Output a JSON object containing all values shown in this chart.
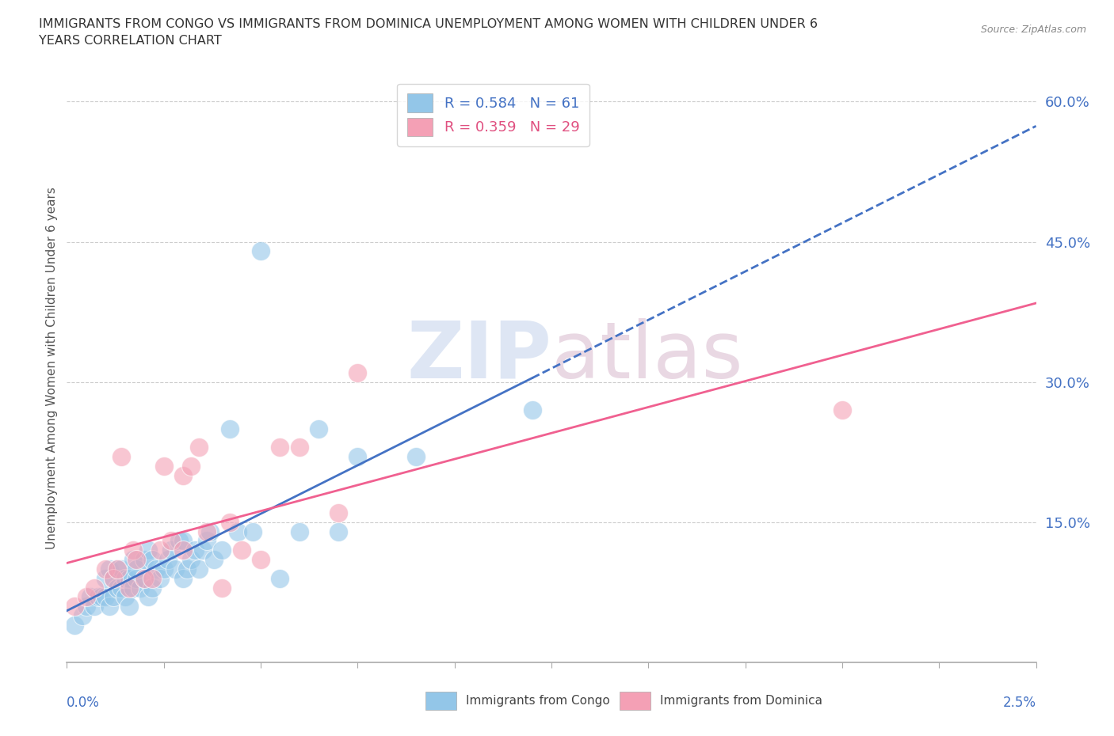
{
  "title_line1": "IMMIGRANTS FROM CONGO VS IMMIGRANTS FROM DOMINICA UNEMPLOYMENT AMONG WOMEN WITH CHILDREN UNDER 6",
  "title_line2": "YEARS CORRELATION CHART",
  "source": "Source: ZipAtlas.com",
  "ylabel": "Unemployment Among Women with Children Under 6 years",
  "yticks": [
    0.0,
    0.15,
    0.3,
    0.45,
    0.6
  ],
  "ytick_labels": [
    "",
    "15.0%",
    "30.0%",
    "45.0%",
    "60.0%"
  ],
  "xlim": [
    0.0,
    0.025
  ],
  "ylim": [
    0.0,
    0.63
  ],
  "congo_R": 0.584,
  "congo_N": 61,
  "dominica_R": 0.359,
  "dominica_N": 29,
  "congo_color": "#93C6E8",
  "dominica_color": "#F4A0B5",
  "congo_line_color": "#4472C4",
  "dominica_line_color": "#F06090",
  "watermark_color": "#D0DCF0",
  "watermark_color2": "#E0C8D8",
  "background_color": "#FFFFFF",
  "congo_x": [
    0.0002,
    0.0004,
    0.0005,
    0.0006,
    0.0007,
    0.0008,
    0.0009,
    0.001,
    0.001,
    0.0011,
    0.0011,
    0.0012,
    0.0012,
    0.0013,
    0.0013,
    0.0014,
    0.0014,
    0.0015,
    0.0015,
    0.0016,
    0.0016,
    0.0017,
    0.0017,
    0.0018,
    0.0018,
    0.0019,
    0.002,
    0.002,
    0.0021,
    0.0021,
    0.0022,
    0.0022,
    0.0023,
    0.0024,
    0.0025,
    0.0026,
    0.0027,
    0.0028,
    0.0029,
    0.003,
    0.003,
    0.0031,
    0.0032,
    0.0033,
    0.0034,
    0.0035,
    0.0036,
    0.0037,
    0.0038,
    0.004,
    0.0042,
    0.0044,
    0.0048,
    0.005,
    0.0055,
    0.006,
    0.0065,
    0.007,
    0.0075,
    0.009,
    0.012
  ],
  "congo_y": [
    0.04,
    0.05,
    0.06,
    0.07,
    0.06,
    0.07,
    0.07,
    0.07,
    0.09,
    0.06,
    0.1,
    0.07,
    0.09,
    0.08,
    0.1,
    0.08,
    0.1,
    0.07,
    0.09,
    0.06,
    0.09,
    0.08,
    0.11,
    0.09,
    0.1,
    0.08,
    0.09,
    0.11,
    0.07,
    0.12,
    0.08,
    0.11,
    0.1,
    0.09,
    0.1,
    0.11,
    0.12,
    0.1,
    0.13,
    0.09,
    0.13,
    0.1,
    0.11,
    0.12,
    0.1,
    0.12,
    0.13,
    0.14,
    0.11,
    0.12,
    0.25,
    0.14,
    0.14,
    0.44,
    0.09,
    0.14,
    0.25,
    0.14,
    0.22,
    0.22,
    0.27
  ],
  "dominica_x": [
    0.0002,
    0.0005,
    0.0007,
    0.001,
    0.0012,
    0.0013,
    0.0014,
    0.0016,
    0.0017,
    0.0018,
    0.002,
    0.0022,
    0.0024,
    0.0025,
    0.0027,
    0.003,
    0.003,
    0.0032,
    0.0034,
    0.0036,
    0.004,
    0.0042,
    0.0045,
    0.005,
    0.0055,
    0.006,
    0.007,
    0.0075,
    0.02
  ],
  "dominica_y": [
    0.06,
    0.07,
    0.08,
    0.1,
    0.09,
    0.1,
    0.22,
    0.08,
    0.12,
    0.11,
    0.09,
    0.09,
    0.12,
    0.21,
    0.13,
    0.12,
    0.2,
    0.21,
    0.23,
    0.14,
    0.08,
    0.15,
    0.12,
    0.11,
    0.23,
    0.23,
    0.16,
    0.31,
    0.27
  ]
}
